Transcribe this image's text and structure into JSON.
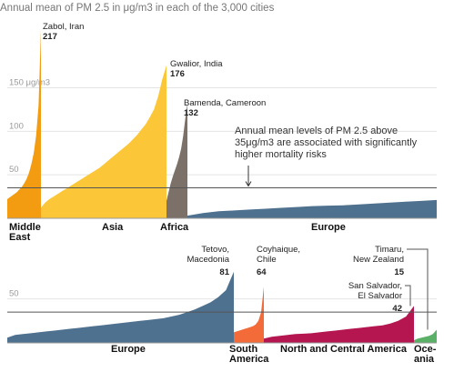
{
  "chart_data": [
    {
      "type": "area",
      "title": "Annual mean of PM 2.5 in μg/m3 in each of the 3,000 cities",
      "ylim": [
        0,
        230
      ],
      "yticks": [
        {
          "value": 50,
          "label": "50"
        },
        {
          "value": 100,
          "label": "100"
        },
        {
          "value": 150,
          "label": "150 μg/m3"
        }
      ],
      "threshold": 35,
      "note": [
        "Annual mean levels of PM 2.5 above",
        "35μg/m3 are associated with significantly",
        "higher mortality risks"
      ],
      "series": [
        {
          "name": "Middle East",
          "label_lines": [
            "Middle",
            "East"
          ],
          "color": "#f39c12",
          "values": [
            22,
            24,
            26,
            28,
            30,
            33,
            36,
            40,
            45,
            52,
            62,
            75,
            95,
            130,
            217
          ]
        },
        {
          "name": "Asia",
          "label_lines": [
            "Asia"
          ],
          "color": "#fbc738",
          "values": [
            12,
            18,
            22,
            25,
            28,
            31,
            34,
            37,
            40,
            43,
            46,
            49,
            52,
            55,
            58,
            62,
            66,
            70,
            74,
            78,
            82,
            86,
            91,
            96,
            102,
            108,
            116,
            125,
            140,
            160,
            176
          ]
        },
        {
          "name": "Africa",
          "label_lines": [
            "Africa"
          ],
          "color": "#7b7168",
          "values": [
            20,
            30,
            40,
            48,
            55,
            62,
            70,
            80,
            95,
            115,
            132
          ]
        },
        {
          "name": "Europe",
          "label_lines": [
            "Europe"
          ],
          "color": "#4f7190",
          "values": [
            3,
            6,
            8,
            9,
            10,
            11,
            12,
            13,
            14,
            14.5,
            15,
            16,
            17,
            18,
            19,
            20,
            21
          ]
        }
      ],
      "annotations": [
        {
          "city": "Zabol, Iran",
          "value": 217
        },
        {
          "city": "Gwalior, India",
          "value": 176
        },
        {
          "city": "Bamenda, Cameroon",
          "value": 132
        }
      ]
    },
    {
      "type": "area",
      "ylim": [
        0,
        90
      ],
      "yticks": [
        {
          "value": 50,
          "label": "50"
        }
      ],
      "threshold": 35,
      "series": [
        {
          "name": "Europe",
          "label_lines": [
            "Europe"
          ],
          "color": "#4f7190",
          "values": [
            6,
            9,
            10,
            11,
            12,
            13,
            14,
            15,
            16,
            17,
            18,
            19,
            20,
            21,
            22,
            23,
            24,
            25,
            26,
            27,
            28,
            30,
            32,
            35,
            38,
            42,
            46,
            52,
            60,
            81
          ]
        },
        {
          "name": "South America",
          "label_lines": [
            "South",
            "America"
          ],
          "color": "#f26b38",
          "values": [
            12,
            13,
            14,
            15,
            16,
            17,
            18,
            19,
            21,
            25,
            35,
            64
          ]
        },
        {
          "name": "North and Central America",
          "label_lines": [
            "North and Central America"
          ],
          "color": "#b51650",
          "values": [
            5,
            7,
            8,
            9,
            10,
            10.5,
            11,
            12,
            13,
            14,
            15,
            16,
            17,
            18,
            19,
            20,
            22,
            25,
            30,
            42
          ]
        },
        {
          "name": "Oceania",
          "label_lines": [
            "Oce-",
            "ania"
          ],
          "color": "#5ab066",
          "values": [
            3,
            5,
            6,
            7,
            8,
            10,
            15
          ]
        }
      ],
      "annotations": [
        {
          "city_lines": [
            "Tetovo,",
            "Macedonia"
          ],
          "value": 81
        },
        {
          "city_lines": [
            "Coyhaique,",
            "Chile"
          ],
          "value": 64
        },
        {
          "city_lines": [
            "Timaru,",
            "New Zealand"
          ],
          "value": 15
        },
        {
          "city_lines": [
            "San Salvador,",
            "El Salvador"
          ],
          "value": 42
        }
      ]
    }
  ]
}
